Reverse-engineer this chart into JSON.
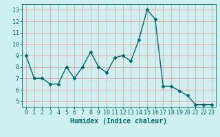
{
  "x": [
    0,
    1,
    2,
    3,
    4,
    5,
    6,
    7,
    8,
    9,
    10,
    11,
    12,
    13,
    14,
    15,
    16,
    17,
    18,
    19,
    20,
    21,
    22,
    23
  ],
  "y": [
    9.0,
    7.0,
    7.0,
    6.5,
    6.5,
    8.0,
    7.0,
    8.0,
    9.3,
    8.0,
    7.5,
    8.8,
    9.0,
    8.5,
    10.4,
    13.0,
    12.2,
    6.3,
    6.3,
    5.9,
    5.5,
    4.7,
    4.7,
    4.7
  ],
  "line_color": "#006666",
  "marker": "D",
  "marker_size": 2.5,
  "bg_color": "#cff0f0",
  "grid_color": "#e8a0a0",
  "xlabel": "Humidex (Indice chaleur)",
  "xlim": [
    -0.5,
    23.5
  ],
  "ylim": [
    4.5,
    13.5
  ],
  "yticks": [
    5,
    6,
    7,
    8,
    9,
    10,
    11,
    12,
    13
  ],
  "xticks": [
    0,
    1,
    2,
    3,
    4,
    5,
    6,
    7,
    8,
    9,
    10,
    11,
    12,
    13,
    14,
    15,
    16,
    17,
    18,
    19,
    20,
    21,
    22,
    23
  ],
  "tick_color": "#006666",
  "label_fontsize": 7,
  "tick_fontsize": 6
}
